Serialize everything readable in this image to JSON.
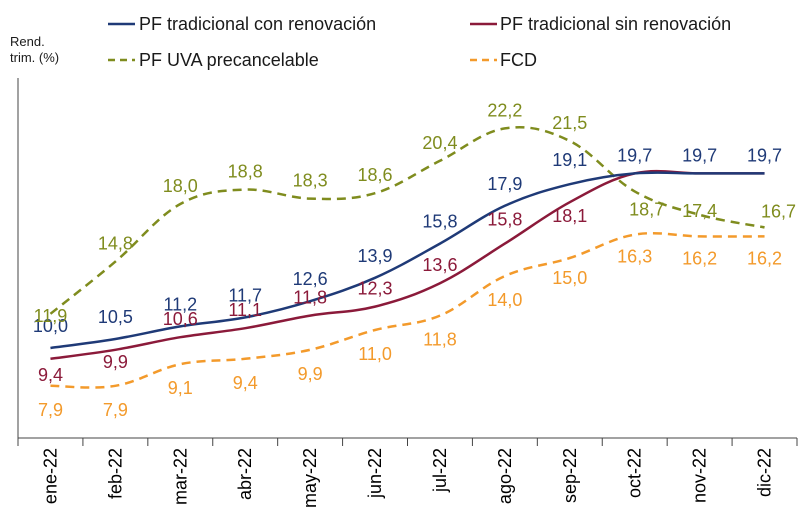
{
  "chart_data": {
    "type": "line",
    "title": "",
    "xlabel": "",
    "ylabel": "Rend.\ntrim. (%)",
    "ylabel_lines": [
      "Rend.",
      "trim. (%)"
    ],
    "categories": [
      "ene-22",
      "feb-22",
      "mar-22",
      "abr-22",
      "may-22",
      "jun-22",
      "jul-22",
      "ago-22",
      "sep-22",
      "oct-22",
      "nov-22",
      "dic-22"
    ],
    "ylim": [
      5,
      25
    ],
    "grid": false,
    "legend_position": "top",
    "series": [
      {
        "id": "pf-con-renovacion",
        "name": "PF tradicional con renovación",
        "color": "#1f3a77",
        "dash": "solid",
        "values": [
          10.0,
          10.5,
          11.2,
          11.7,
          12.6,
          13.9,
          15.8,
          17.9,
          19.1,
          19.7,
          19.7,
          19.7
        ],
        "labels": [
          "10,0",
          "10,5",
          "11,2",
          "11,7",
          "12,6",
          "13,9",
          "15,8",
          "17,9",
          "19,1",
          "19,7",
          "19,7",
          "19,7"
        ]
      },
      {
        "id": "pf-sin-renovacion",
        "name": "PF tradicional sin renovación",
        "color": "#8b1a3a",
        "dash": "solid",
        "values": [
          9.4,
          9.9,
          10.6,
          11.1,
          11.8,
          12.3,
          13.6,
          15.8,
          18.1,
          19.7,
          19.7,
          19.7
        ],
        "labels": [
          "9,4",
          "9,9",
          "10,6",
          "11,1",
          "11,8",
          "12,3",
          "13,6",
          "15,8",
          "18,1",
          "",
          "",
          ""
        ]
      },
      {
        "id": "pf-uva",
        "name": "PF UVA precancelable",
        "color": "#7f8c1e",
        "dash": "dashed",
        "values": [
          11.9,
          14.8,
          18.0,
          18.8,
          18.3,
          18.6,
          20.4,
          22.2,
          21.5,
          18.7,
          17.4,
          16.7
        ],
        "labels": [
          "11,9",
          "14,8",
          "18,0",
          "18,8",
          "18,3",
          "18,6",
          "20,4",
          "22,2",
          "21,5",
          "18,7",
          "17,4",
          "16,7"
        ]
      },
      {
        "id": "fcd",
        "name": "FCD",
        "color": "#f39a2b",
        "dash": "dashed",
        "values": [
          7.9,
          7.9,
          9.1,
          9.4,
          9.9,
          11.0,
          11.8,
          14.0,
          15.0,
          16.3,
          16.2,
          16.2
        ],
        "labels": [
          "7,9",
          "7,9",
          "9,1",
          "9,4",
          "9,9",
          "11,0",
          "11,8",
          "14,0",
          "15,0",
          "16,3",
          "16,2",
          "16,2"
        ]
      }
    ]
  }
}
